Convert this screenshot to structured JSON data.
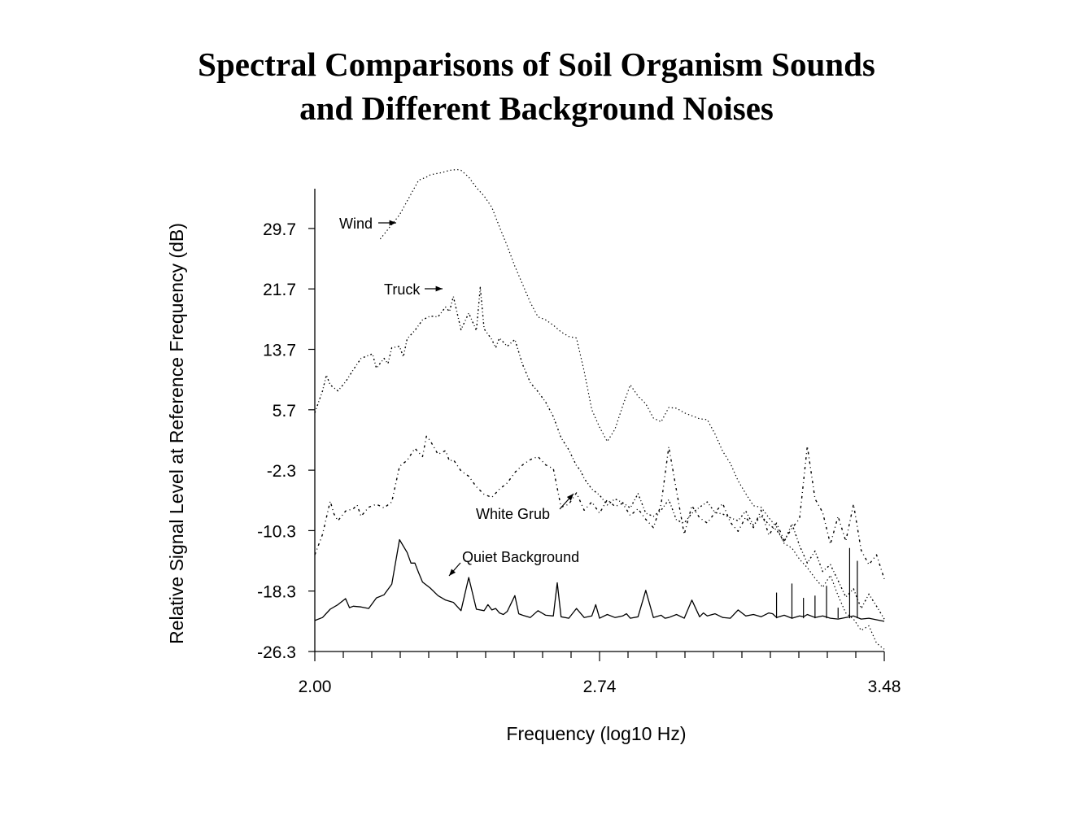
{
  "title": {
    "line1": "Spectral Comparisons of Soil Organism Sounds",
    "line2": "and Different Background Noises"
  },
  "chart_data": {
    "type": "line",
    "title": "Spectral Comparisons of Soil Organism Sounds and Different Background Noises",
    "xlabel": "Frequency (log10 Hz)",
    "ylabel": "Relative Signal Level at Reference Frequency (dB)",
    "xlim": [
      2.0,
      3.48
    ],
    "ylim": [
      -26.3,
      37.5
    ],
    "x_ticks": [
      "2.00",
      "2.74",
      "3.48"
    ],
    "y_ticks": [
      "-26.3",
      "-18.3",
      "-10.3",
      "-2.3",
      "5.7",
      "13.7",
      "21.7",
      "29.7"
    ],
    "series": [
      {
        "name": "Wind",
        "style": "dotted",
        "x": [
          2.17,
          2.22,
          2.27,
          2.29,
          2.3,
          2.31,
          2.32,
          2.33,
          2.35,
          2.37,
          2.38,
          2.4,
          2.42,
          2.44,
          2.46,
          2.48,
          2.5,
          2.52,
          2.54,
          2.56,
          2.58,
          2.6,
          2.62,
          2.64,
          2.66,
          2.68,
          2.7,
          2.72,
          2.74,
          2.76,
          2.78,
          2.8,
          2.82,
          2.84,
          2.86,
          2.88,
          2.9,
          2.92,
          2.94,
          2.96,
          2.98,
          3.0,
          3.02,
          3.04,
          3.06,
          3.08,
          3.1,
          3.12,
          3.14,
          3.16,
          3.18,
          3.2,
          3.22,
          3.24,
          3.26,
          3.28,
          3.3,
          3.32,
          3.34,
          3.36,
          3.38,
          3.4,
          3.42,
          3.44,
          3.46,
          3.48
        ],
        "values": [
          28.3,
          31.5,
          36.1,
          36.5,
          36.8,
          36.9,
          37.0,
          37.1,
          37.4,
          37.5,
          37.4,
          36.5,
          35.1,
          34.0,
          32.5,
          29.9,
          27.4,
          24.7,
          22.3,
          19.9,
          18.0,
          17.6,
          16.9,
          16.0,
          15.4,
          15.2,
          10.8,
          5.7,
          3.4,
          1.5,
          3.1,
          6.2,
          9.0,
          7.5,
          6.5,
          4.6,
          4.1,
          6.0,
          5.9,
          5.3,
          4.9,
          4.5,
          4.4,
          2.5,
          0.2,
          -1.4,
          -3.7,
          -5.4,
          -7.0,
          -7.2,
          -8.6,
          -9.8,
          -12.0,
          -12.6,
          -14.1,
          -15.2,
          -16.6,
          -17.8,
          -16.2,
          -18.9,
          -21.2,
          -22.0,
          -23.5,
          -22.9,
          -25.2,
          -26.0
        ]
      },
      {
        "name": "Truck",
        "style": "dashed",
        "x": [
          2.0,
          2.02,
          2.03,
          2.04,
          2.06,
          2.08,
          2.1,
          2.12,
          2.14,
          2.15,
          2.16,
          2.18,
          2.19,
          2.2,
          2.22,
          2.23,
          2.24,
          2.26,
          2.28,
          2.3,
          2.32,
          2.34,
          2.35,
          2.36,
          2.38,
          2.39,
          2.4,
          2.42,
          2.43,
          2.44,
          2.46,
          2.47,
          2.48,
          2.5,
          2.52,
          2.54,
          2.56,
          2.58,
          2.6,
          2.62,
          2.64,
          2.66,
          2.68,
          2.69,
          2.7,
          2.72,
          2.74,
          2.76,
          2.78,
          2.8,
          2.82,
          2.84,
          2.86,
          2.88,
          2.9,
          2.92,
          2.94,
          2.96,
          2.98,
          3.0,
          3.02,
          3.04,
          3.06,
          3.08,
          3.1,
          3.12,
          3.14,
          3.16,
          3.18,
          3.2,
          3.22,
          3.24,
          3.26,
          3.28,
          3.3,
          3.32,
          3.34,
          3.36,
          3.38,
          3.4,
          3.42,
          3.44,
          3.46,
          3.48
        ],
        "values": [
          5.3,
          8.2,
          10.3,
          9.0,
          8.2,
          9.4,
          11.0,
          12.5,
          12.9,
          13.1,
          11.2,
          12.5,
          11.8,
          13.9,
          14.1,
          12.7,
          15.1,
          16.2,
          17.6,
          18.1,
          18.0,
          19.3,
          18.7,
          20.7,
          16.3,
          17.4,
          18.5,
          16.2,
          21.9,
          16.4,
          15.0,
          13.9,
          15.2,
          14.1,
          15.0,
          11.7,
          9.3,
          8.1,
          6.7,
          4.8,
          2.0,
          0.4,
          -1.7,
          -2.3,
          -3.4,
          -4.8,
          -5.6,
          -6.9,
          -6.1,
          -6.6,
          -7.3,
          -5.4,
          -8.0,
          -8.4,
          -7.6,
          -6.2,
          -8.9,
          -9.3,
          -8.0,
          -7.2,
          -6.5,
          -7.9,
          -8.1,
          -8.6,
          -9.0,
          -7.7,
          -9.6,
          -8.3,
          -9.5,
          -10.2,
          -11.8,
          -9.4,
          -12.3,
          -14.6,
          -13.0,
          -15.7,
          -14.8,
          -16.9,
          -19.1,
          -18.0,
          -20.6,
          -18.7,
          -20.3,
          -22.0
        ]
      },
      {
        "name": "White Grub",
        "style": "dash-dot",
        "x": [
          2.0,
          2.02,
          2.04,
          2.05,
          2.06,
          2.08,
          2.1,
          2.11,
          2.12,
          2.14,
          2.16,
          2.18,
          2.2,
          2.22,
          2.24,
          2.26,
          2.28,
          2.29,
          2.3,
          2.32,
          2.34,
          2.35,
          2.36,
          2.38,
          2.4,
          2.42,
          2.44,
          2.46,
          2.48,
          2.5,
          2.52,
          2.54,
          2.56,
          2.58,
          2.6,
          2.62,
          2.64,
          2.66,
          2.68,
          2.7,
          2.72,
          2.74,
          2.76,
          2.78,
          2.8,
          2.82,
          2.84,
          2.86,
          2.88,
          2.9,
          2.92,
          2.94,
          2.96,
          2.98,
          3.0,
          3.02,
          3.04,
          3.06,
          3.08,
          3.1,
          3.12,
          3.14,
          3.16,
          3.18,
          3.2,
          3.22,
          3.24,
          3.26,
          3.28,
          3.3,
          3.32,
          3.34,
          3.36,
          3.38,
          3.4,
          3.42,
          3.44,
          3.46,
          3.48
        ],
        "values": [
          -13.5,
          -10.8,
          -6.4,
          -8.1,
          -9.0,
          -7.7,
          -7.4,
          -6.9,
          -8.4,
          -7.2,
          -6.8,
          -7.3,
          -6.5,
          -1.8,
          -1.0,
          0.6,
          -0.5,
          2.2,
          1.6,
          -0.2,
          0.3,
          -1.1,
          -0.9,
          -2.4,
          -3.1,
          -4.5,
          -5.5,
          -5.9,
          -4.8,
          -4.0,
          -2.6,
          -1.6,
          -0.9,
          -0.5,
          -1.6,
          -2.1,
          -7.2,
          -6.8,
          -5.3,
          -7.6,
          -6.5,
          -8.0,
          -6.2,
          -7.1,
          -6.7,
          -8.3,
          -7.4,
          -8.8,
          -9.9,
          -6.8,
          0.8,
          -5.0,
          -10.8,
          -7.0,
          -8.6,
          -9.3,
          -7.9,
          -6.7,
          -9.2,
          -10.4,
          -8.5,
          -9.9,
          -7.6,
          -10.9,
          -9.3,
          -11.6,
          -10.0,
          -8.7,
          0.9,
          -6.1,
          -7.9,
          -12.1,
          -8.4,
          -11.7,
          -6.8,
          -12.9,
          -14.8,
          -13.5,
          -16.7
        ]
      },
      {
        "name": "Quiet Background",
        "style": "solid",
        "x": [
          2.0,
          2.02,
          2.04,
          2.06,
          2.08,
          2.09,
          2.1,
          2.12,
          2.14,
          2.16,
          2.18,
          2.2,
          2.22,
          2.24,
          2.25,
          2.26,
          2.27,
          2.28,
          2.3,
          2.32,
          2.34,
          2.36,
          2.38,
          2.4,
          2.42,
          2.44,
          2.45,
          2.46,
          2.47,
          2.48,
          2.49,
          2.5,
          2.52,
          2.53,
          2.54,
          2.56,
          2.58,
          2.6,
          2.62,
          2.63,
          2.64,
          2.66,
          2.68,
          2.7,
          2.72,
          2.73,
          2.74,
          2.76,
          2.78,
          2.8,
          2.81,
          2.82,
          2.84,
          2.86,
          2.88,
          2.9,
          2.91,
          2.92,
          2.94,
          2.96,
          2.98,
          3.0,
          3.01,
          3.02,
          3.04,
          3.06,
          3.08,
          3.1,
          3.12,
          3.14,
          3.16,
          3.18,
          3.19,
          3.2,
          3.22,
          3.24,
          3.26,
          3.27,
          3.28,
          3.3,
          3.32,
          3.34,
          3.36,
          3.38,
          3.4,
          3.42,
          3.44,
          3.46,
          3.48
        ],
        "values": [
          -22.2,
          -21.8,
          -20.7,
          -20.1,
          -19.3,
          -20.5,
          -20.3,
          -20.4,
          -20.6,
          -19.2,
          -18.8,
          -17.4,
          -11.5,
          -13.2,
          -14.6,
          -14.6,
          -15.9,
          -17.1,
          -17.9,
          -18.9,
          -19.5,
          -19.8,
          -20.9,
          -16.5,
          -20.7,
          -20.9,
          -20.1,
          -20.8,
          -20.6,
          -21.2,
          -21.4,
          -21.0,
          -18.9,
          -21.3,
          -21.5,
          -21.8,
          -20.9,
          -21.5,
          -21.6,
          -17.2,
          -21.7,
          -21.9,
          -20.6,
          -21.8,
          -21.6,
          -20.1,
          -21.9,
          -21.4,
          -21.8,
          -21.6,
          -21.3,
          -21.9,
          -21.7,
          -18.2,
          -21.8,
          -21.5,
          -21.9,
          -21.8,
          -21.4,
          -21.9,
          -19.5,
          -21.7,
          -21.2,
          -21.6,
          -21.3,
          -21.8,
          -21.9,
          -20.8,
          -21.6,
          -21.4,
          -21.7,
          -21.2,
          -21.3,
          -21.8,
          -21.5,
          -21.9,
          -21.6,
          -21.7,
          -21.4,
          -21.8,
          -21.6,
          -21.9,
          -22.0,
          -21.8,
          -21.6,
          -22.0,
          -21.9,
          -22.1,
          -22.3
        ]
      }
    ],
    "spikes": [
      {
        "series": "Quiet Background",
        "x": [
          3.2,
          3.24,
          3.27,
          3.3,
          3.33,
          3.36,
          3.39,
          3.41
        ],
        "values": [
          -18.5,
          -17.3,
          -19.2,
          -18.9,
          -17.6,
          -20.5,
          -12.6,
          -14.3
        ]
      }
    ],
    "annotations": [
      {
        "text": "Wind",
        "points_to": "Wind"
      },
      {
        "text": "Truck",
        "points_to": "Truck"
      },
      {
        "text": "White Grub",
        "points_to": "White Grub"
      },
      {
        "text": "Quiet Background",
        "points_to": "Quiet Background"
      }
    ]
  }
}
